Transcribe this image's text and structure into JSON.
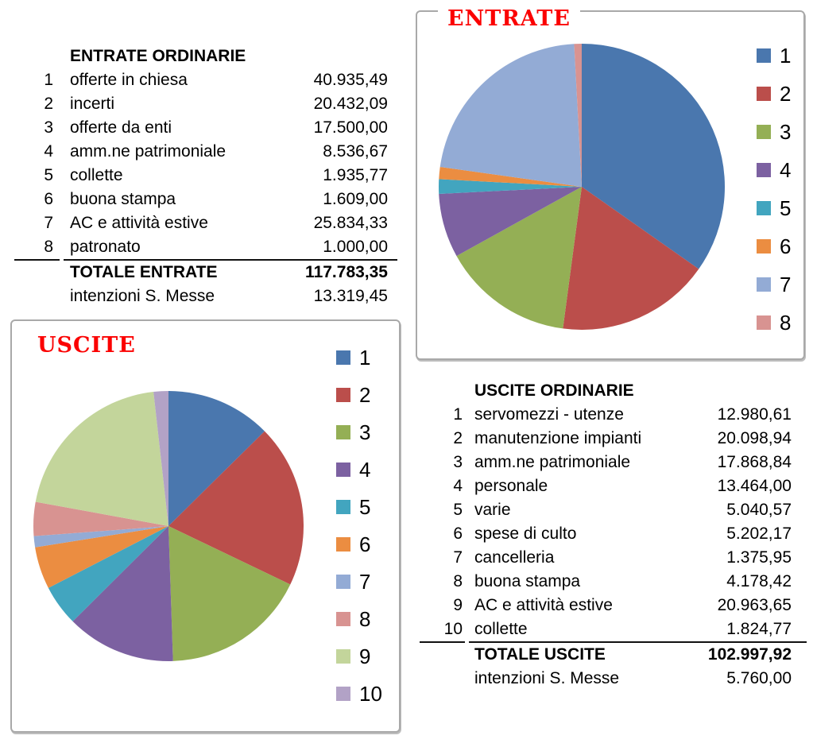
{
  "entrate_table": {
    "title": "ENTRATE ORDINARIE",
    "rows": [
      {
        "num": "1",
        "label": "offerte in chiesa",
        "value": "40.935,49"
      },
      {
        "num": "2",
        "label": "incerti",
        "value": "20.432,09"
      },
      {
        "num": "3",
        "label": "offerte da enti",
        "value": "17.500,00"
      },
      {
        "num": "4",
        "label": "amm.ne patrimoniale",
        "value": "8.536,67"
      },
      {
        "num": "5",
        "label": "collette",
        "value": "1.935,77"
      },
      {
        "num": "6",
        "label": "buona stampa",
        "value": "1.609,00"
      },
      {
        "num": "7",
        "label": "AC e attività estive",
        "value": "25.834,33"
      },
      {
        "num": "8",
        "label": "patronato",
        "value": "1.000,00"
      }
    ],
    "total_label": "TOTALE ENTRATE",
    "total_value": "117.783,35",
    "extra_label": "intenzioni S. Messe",
    "extra_value": "13.319,45"
  },
  "uscite_table": {
    "title": "USCITE ORDINARIE",
    "rows": [
      {
        "num": "1",
        "label": "servomezzi - utenze",
        "value": "12.980,61"
      },
      {
        "num": "2",
        "label": "manutenzione impianti",
        "value": "20.098,94"
      },
      {
        "num": "3",
        "label": "amm.ne patrimoniale",
        "value": "17.868,84"
      },
      {
        "num": "4",
        "label": "personale",
        "value": "13.464,00"
      },
      {
        "num": "5",
        "label": "varie",
        "value": "5.040,57"
      },
      {
        "num": "6",
        "label": "spese di culto",
        "value": "5.202,17"
      },
      {
        "num": "7",
        "label": "cancelleria",
        "value": "1.375,95"
      },
      {
        "num": "8",
        "label": "buona stampa",
        "value": "4.178,42"
      },
      {
        "num": "9",
        "label": "AC e attività estive",
        "value": "20.963,65"
      },
      {
        "num": "10",
        "label": "collette",
        "value": "1.824,77"
      }
    ],
    "total_label": "TOTALE USCITE",
    "total_value": "102.997,92",
    "extra_label": "intenzioni S. Messe",
    "extra_value": "5.760,00"
  },
  "chart_data": [
    {
      "id": "entrate",
      "type": "pie",
      "title": "ENTRATE",
      "title_color": "#fb0000",
      "categories": [
        "1",
        "2",
        "3",
        "4",
        "5",
        "6",
        "7",
        "8"
      ],
      "category_labels": [
        "offerte in chiesa",
        "incerti",
        "offerte da enti",
        "amm.ne patrimoniale",
        "collette",
        "buona stampa",
        "AC e attività estive",
        "patronato"
      ],
      "values": [
        40935.49,
        20432.09,
        17500.0,
        8536.67,
        1935.77,
        1609.0,
        25834.33,
        1000.0
      ],
      "total": 117783.35,
      "colors": [
        "#4A77AE",
        "#BB4E4B",
        "#94AF55",
        "#7C61A1",
        "#42A5BF",
        "#EB8D41",
        "#93ABD5",
        "#D89391"
      ],
      "legend_position": "right",
      "start_angle": "12-oclock",
      "direction": "clockwise"
    },
    {
      "id": "uscite",
      "type": "pie",
      "title": "USCITE",
      "title_color": "#fb0000",
      "categories": [
        "1",
        "2",
        "3",
        "4",
        "5",
        "6",
        "7",
        "8",
        "9",
        "10"
      ],
      "category_labels": [
        "servomezzi - utenze",
        "manutenzione impianti",
        "amm.ne patrimoniale",
        "personale",
        "varie",
        "spese di culto",
        "cancelleria",
        "buona stampa",
        "AC e attività estive",
        "collette"
      ],
      "values": [
        12980.61,
        20098.94,
        17868.84,
        13464.0,
        5040.57,
        5202.17,
        1375.95,
        4178.42,
        20963.65,
        1824.77
      ],
      "total": 102997.92,
      "colors": [
        "#4A77AE",
        "#BB4E4B",
        "#94AF55",
        "#7C61A1",
        "#42A5BF",
        "#EB8D41",
        "#93ABD5",
        "#D89391",
        "#C3D59B",
        "#B2A2C6"
      ],
      "legend_position": "right",
      "start_angle": "12-oclock",
      "direction": "clockwise"
    }
  ]
}
